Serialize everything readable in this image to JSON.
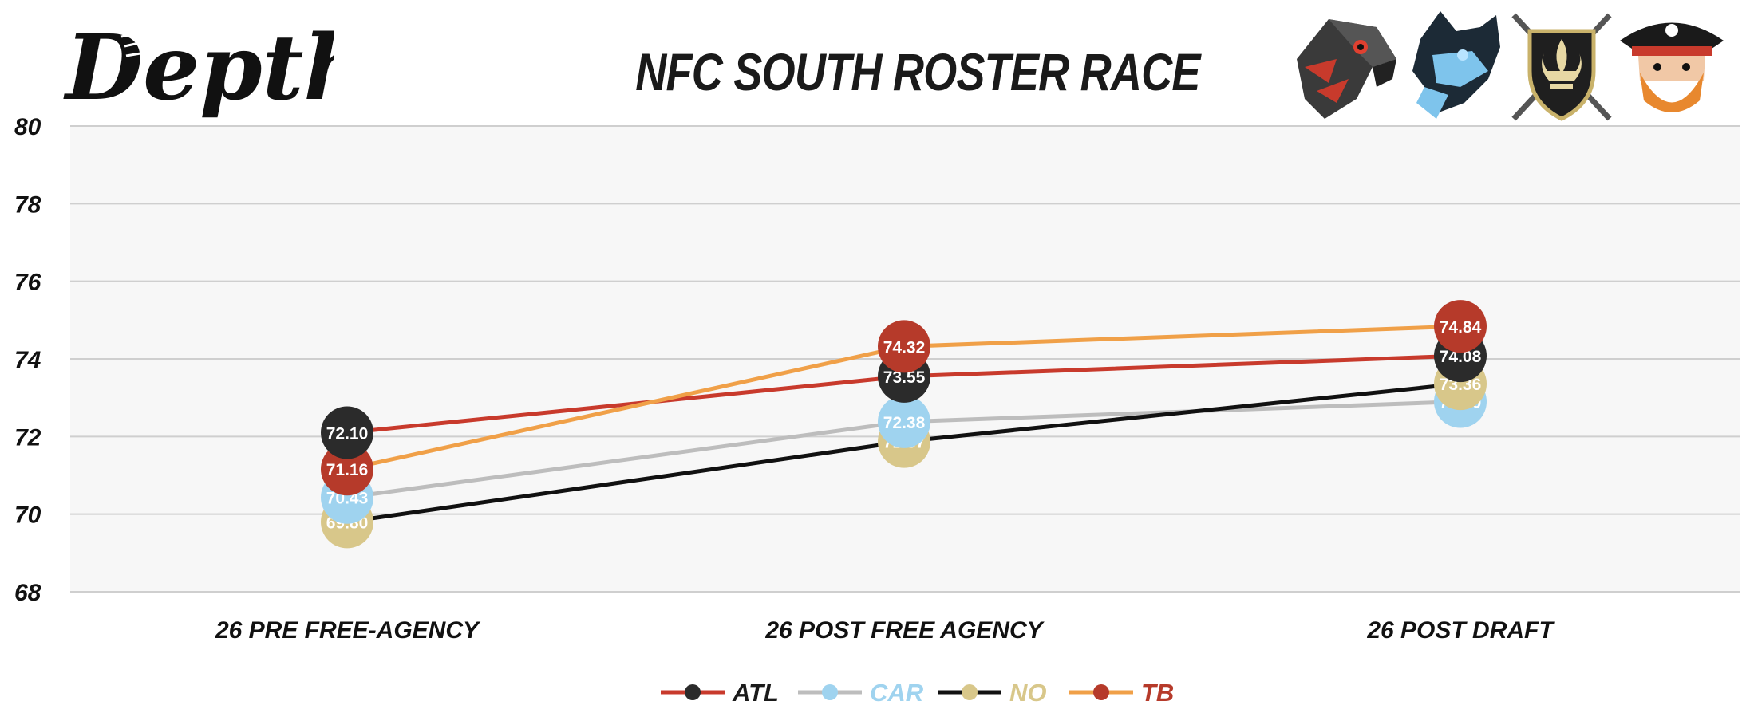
{
  "brand": {
    "logo_text": "Depth"
  },
  "chart_data": {
    "type": "line",
    "title": "NFC SOUTH ROSTER RACE",
    "xlabel": "",
    "ylabel": "",
    "categories": [
      "26 PRE FREE-AGENCY",
      "26 POST FREE AGENCY",
      "26 POST DRAFT"
    ],
    "ylim": [
      68,
      80
    ],
    "yticks": [
      68,
      70,
      72,
      74,
      76,
      78,
      80
    ],
    "grid": true,
    "legend_position": "bottom",
    "series": [
      {
        "name": "ATL",
        "values": [
          72.1,
          73.55,
          74.08
        ],
        "labels": [
          "72.10",
          "73.55",
          "74.08"
        ],
        "line_color": "#c83a2c",
        "marker_color": "#2b2b2b",
        "legend_text_color": "#1a1a1a"
      },
      {
        "name": "CAR",
        "values": [
          70.43,
          72.38,
          72.9
        ],
        "labels": [
          "70.43",
          "72.38",
          "72.90"
        ],
        "line_color": "#bdbdbd",
        "marker_color": "#9fd3ef",
        "legend_text_color": "#9fd3ef"
      },
      {
        "name": "NO",
        "values": [
          69.8,
          71.87,
          73.36
        ],
        "labels": [
          "69.80",
          "71.87",
          "73.36"
        ],
        "line_color": "#111111",
        "marker_color": "#d8c78a",
        "legend_text_color": "#d8c78a"
      },
      {
        "name": "TB",
        "values": [
          71.16,
          74.32,
          74.84
        ],
        "labels": [
          "71.16",
          "74.32",
          "74.84"
        ],
        "line_color": "#f0a048",
        "marker_color": "#b63a2a",
        "legend_text_color": "#b63a2a"
      }
    ]
  },
  "team_logos": [
    {
      "icon": "falcon-head-icon",
      "color": "#c83a2c"
    },
    {
      "icon": "panther-head-icon",
      "color": "#6fb8e6"
    },
    {
      "icon": "fleur-de-lis-shield-icon",
      "color": "#c9b26a"
    },
    {
      "icon": "pirate-head-icon",
      "color": "#e8882e"
    }
  ]
}
